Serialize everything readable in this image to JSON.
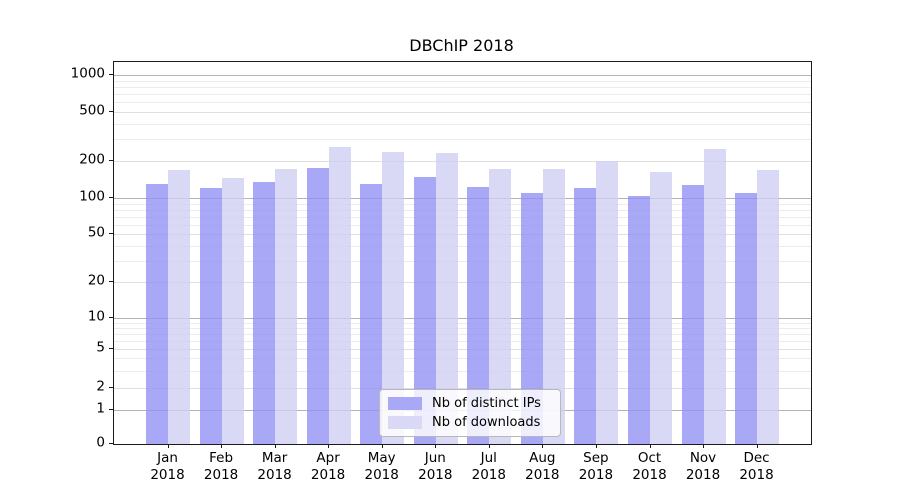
{
  "chart_data": {
    "type": "bar",
    "title": "DBChIP 2018",
    "categories": [
      "Jan",
      "Feb",
      "Mar",
      "Apr",
      "May",
      "Jun",
      "Jul",
      "Aug",
      "Sep",
      "Oct",
      "Nov",
      "Dec"
    ],
    "x_sublabel": "2018",
    "series": [
      {
        "name": "Nb of distinct IPs",
        "color_hex": "#a8a8f6",
        "fill_rgba": "rgba(143,143,243,0.78)",
        "values": [
          129,
          120,
          136,
          176,
          129,
          147,
          124,
          109,
          121,
          104,
          128,
          110
        ]
      },
      {
        "name": "Nb of downloads",
        "color_hex": "#d9d9f6",
        "fill_rgba": "rgba(206,206,243,0.78)",
        "values": [
          170,
          145,
          171,
          260,
          236,
          231,
          172,
          172,
          199,
          164,
          252,
          170
        ]
      }
    ],
    "yscale": "symlog",
    "ytick_labels": [
      "0",
      "1",
      "2",
      "5",
      "10",
      "20",
      "50",
      "100",
      "200",
      "500",
      "1000"
    ],
    "ylim": [
      0,
      1276
    ],
    "grid": true,
    "legend_position": "lower center",
    "background_color": "#ffffff"
  }
}
